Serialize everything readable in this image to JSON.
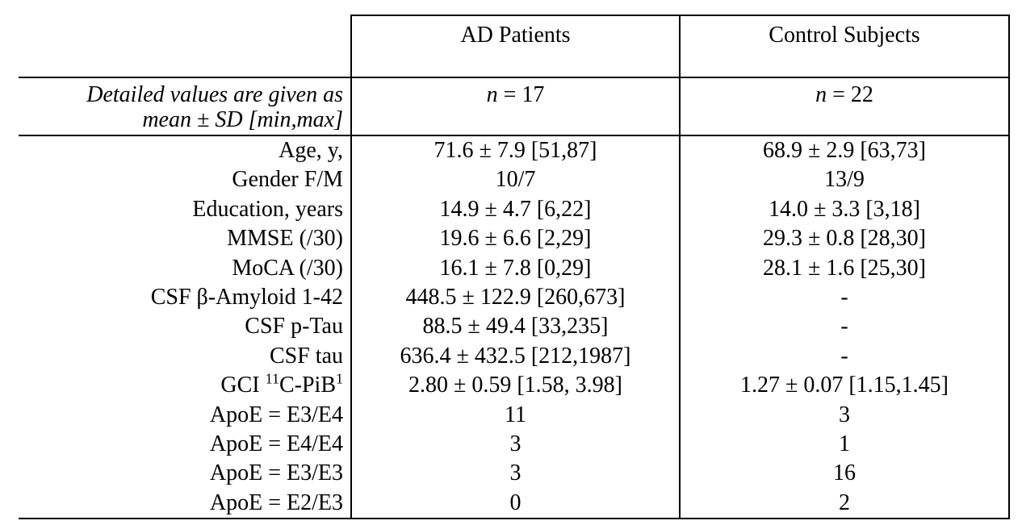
{
  "page": {
    "background_color": "#ffffff",
    "text_color": "#000000"
  },
  "table": {
    "columns": [
      {
        "header": "AD Patients",
        "n_label": "n",
        "n_value": "= 17"
      },
      {
        "header": "Control Subjects",
        "n_label": "n",
        "n_value": "= 22"
      }
    ],
    "note": {
      "line1": "Detailed values are given as",
      "line2": "mean ± SD [min,max]"
    },
    "rows": [
      {
        "label": "Age, y,",
        "ad": "71.6 ± 7.9 [51,87]",
        "control": "68.9 ± 2.9 [63,73]"
      },
      {
        "label": "Gender F/M",
        "ad": "10/7",
        "control": "13/9"
      },
      {
        "label": "Education, years",
        "ad": "14.9 ± 4.7 [6,22]",
        "control": "14.0 ± 3.3 [3,18]"
      },
      {
        "label": "MMSE (/30)",
        "ad": "19.6 ± 6.6 [2,29]",
        "control": "29.3 ± 0.8 [28,30]"
      },
      {
        "label": "MoCA (/30)",
        "ad": "16.1 ± 7.8 [0,29]",
        "control": "28.1 ± 1.6 [25,30]"
      },
      {
        "label": "CSF β-Amyloid 1-42",
        "ad": "448.5 ± 122.9 [260,673]",
        "control": "-"
      },
      {
        "label": "CSF p-Tau",
        "ad": "88.5 ± 49.4 [33,235]",
        "control": "-"
      },
      {
        "label": "CSF tau",
        "ad": "636.4 ± 432.5 [212,1987]",
        "control": "-"
      },
      {
        "label_prefix": "GCI ",
        "label_sup1": "11",
        "label_mid": "C-PiB",
        "label_sup2": "1",
        "ad": "2.80 ± 0.59 [1.58, 3.98]",
        "control": "1.27 ± 0.07 [1.15,1.45]"
      },
      {
        "label": "ApoE = E3/E4",
        "ad": "11",
        "control": "3"
      },
      {
        "label": "ApoE = E4/E4",
        "ad": "3",
        "control": "1"
      },
      {
        "label": "ApoE = E3/E3",
        "ad": "3",
        "control": "16"
      },
      {
        "label": "ApoE = E2/E3",
        "ad": "0",
        "control": "2"
      }
    ]
  }
}
